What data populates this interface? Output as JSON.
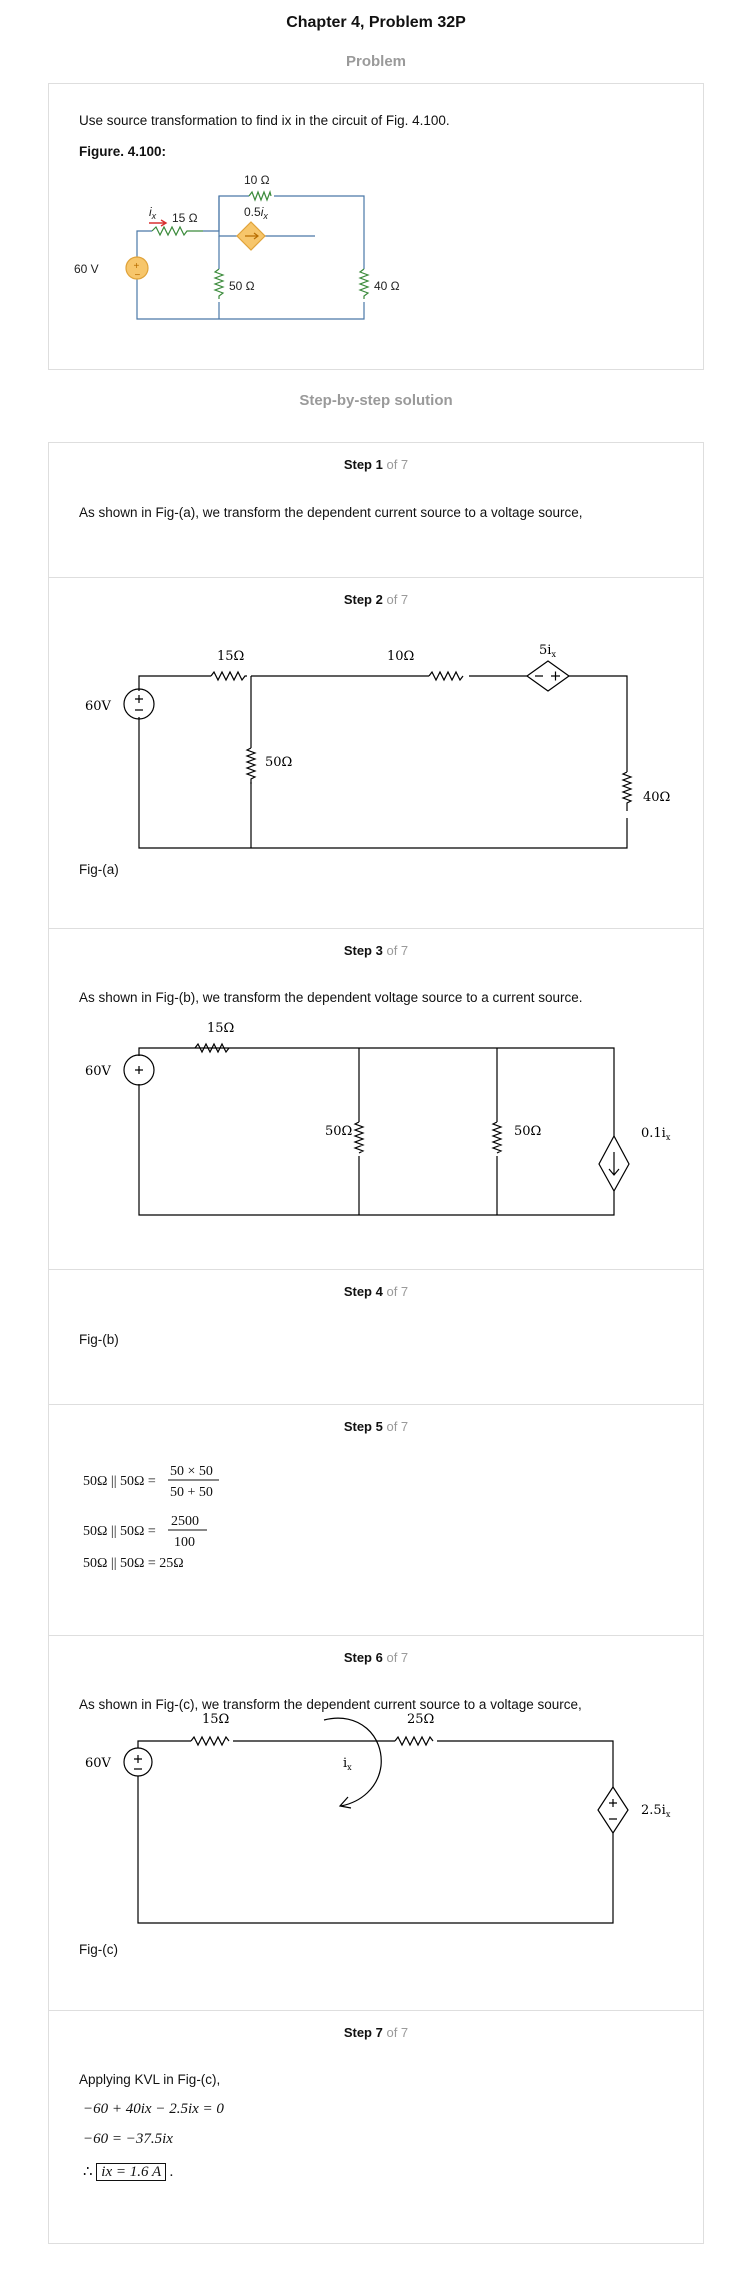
{
  "header": {
    "title": "Chapter 4, Problem 32P",
    "problem_heading": "Problem"
  },
  "problem": {
    "text": "Use source transformation to find ix in the circuit of Fig. 4.100.",
    "figure_label": "Figure. 4.100:",
    "fig": {
      "r10": "10 Ω",
      "dep": "0.5/x",
      "ix": "ix",
      "r15": "15 Ω",
      "v60": "60 V",
      "r50": "50 Ω",
      "r40": "40 Ω"
    }
  },
  "solution_heading": "Step-by-step solution",
  "steps": [
    {
      "label": "Step 1",
      "of": "of 7",
      "text": "As shown in Fig-(a), we transform the dependent current source to a voltage source,"
    },
    {
      "label": "Step 2",
      "of": "of 7",
      "caption": "Fig-(a)",
      "fig": {
        "r15": "15Ω",
        "r10": "10Ω",
        "dep": "5ix",
        "v60": "60V",
        "r50": "50Ω",
        "r40": "40Ω"
      }
    },
    {
      "label": "Step 3",
      "of": "of 7",
      "text": "As shown in Fig-(b), we transform the dependent voltage source to a current source.",
      "fig": {
        "r15": "15Ω",
        "v60": "60V",
        "r50a": "50Ω",
        "r50b": "50Ω",
        "dep": "0.1ix"
      }
    },
    {
      "label": "Step 4",
      "of": "of 7",
      "caption": "Fig-(b)"
    },
    {
      "label": "Step 5",
      "of": "of 7",
      "eq1_lhs": "50Ω || 50Ω =",
      "eq1_num": "50 × 50",
      "eq1_den": "50 + 50",
      "eq2_lhs": "50Ω || 50Ω =",
      "eq2_num": "2500",
      "eq2_den": "100",
      "eq3": "50Ω || 50Ω = 25Ω"
    },
    {
      "label": "Step 6",
      "of": "of 7",
      "text": "As shown in Fig-(c), we transform the dependent current source to a voltage source,",
      "caption": "Fig-(c)",
      "fig": {
        "r15": "15Ω",
        "r25": "25Ω",
        "v60": "60V",
        "ix": "ix",
        "dep": "2.5ix"
      }
    },
    {
      "label": "Step 7",
      "of": "of 7",
      "text": "Applying KVL in Fig-(c),",
      "eq1": "−60 + 40ix − 2.5ix = 0",
      "eq2": "−60 = −37.5ix",
      "eq3": "ix = 1.6 A"
    }
  ],
  "colors": {
    "wire_blue": "#4a78a8",
    "resistor_green": "#3a8a3a",
    "source_fill": "#f7c66b",
    "source_stroke": "#e0a33a",
    "arrow_red": "#d93030"
  }
}
